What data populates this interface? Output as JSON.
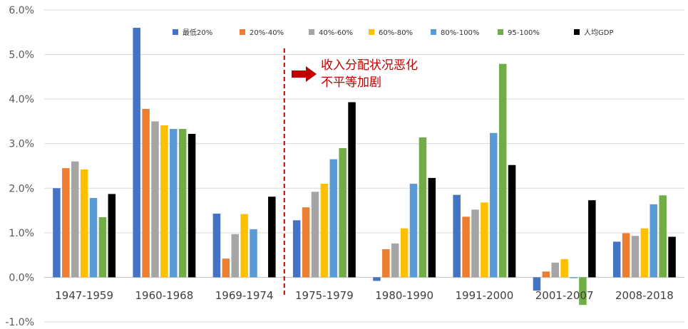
{
  "chart_data": {
    "type": "bar",
    "categories": [
      "1947-1959",
      "1960-1968",
      "1969-1974",
      "1975-1979",
      "1980-1990",
      "1991-2000",
      "2001-2007",
      "2008-2018"
    ],
    "ylim": [
      -1.0,
      6.0
    ],
    "yticks": [
      -1.0,
      0.0,
      1.0,
      2.0,
      3.0,
      4.0,
      5.0,
      6.0
    ],
    "ytick_labels": [
      "-1.0%",
      "0.0%",
      "1.0%",
      "2.0%",
      "3.0%",
      "4.0%",
      "5.0%",
      "6.0%"
    ],
    "grid": true,
    "legend_position": "top",
    "series": [
      {
        "name": "最低20%",
        "color": "#4472c4",
        "values": [
          2.0,
          5.6,
          1.43,
          1.28,
          -0.08,
          1.85,
          -0.3,
          0.8
        ]
      },
      {
        "name": "20%-40%",
        "color": "#ed7d31",
        "values": [
          2.45,
          3.78,
          0.42,
          1.57,
          0.63,
          1.36,
          0.13,
          0.99
        ]
      },
      {
        "name": "40%-60%",
        "color": "#a5a5a5",
        "values": [
          2.6,
          3.5,
          0.97,
          1.92,
          0.76,
          1.52,
          0.33,
          0.93
        ]
      },
      {
        "name": "60%-80%",
        "color": "#ffc000",
        "values": [
          2.42,
          3.41,
          1.42,
          2.1,
          1.1,
          1.68,
          0.41,
          1.1
        ]
      },
      {
        "name": "80%-100%",
        "color": "#5b9bd5",
        "values": [
          1.78,
          3.33,
          1.08,
          2.65,
          2.1,
          3.24,
          -0.02,
          1.64
        ]
      },
      {
        "name": "95-100%",
        "color": "#70ad47",
        "values": [
          1.35,
          3.33,
          null,
          2.9,
          3.14,
          4.79,
          -0.62,
          1.84
        ]
      },
      {
        "name": "人均GDP",
        "color": "#000000",
        "values": [
          1.87,
          3.22,
          1.81,
          3.93,
          2.23,
          2.52,
          1.73,
          0.91
        ]
      }
    ],
    "annotations": {
      "divider_after_category": "1969-1974",
      "divider_color": "#c00000",
      "arrow_color": "#c00000",
      "text_lines": [
        "收入分配状况恶化",
        "不平等加剧"
      ]
    }
  }
}
